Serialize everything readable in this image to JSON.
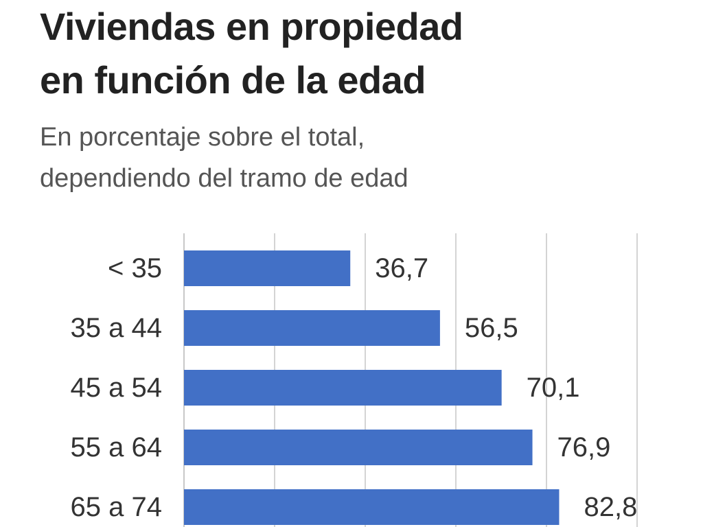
{
  "title": {
    "line1": "Viviendas en propiedad",
    "line2": "en función de la edad"
  },
  "subtitle": {
    "line1": "En porcentaje sobre el total,",
    "line2": "dependiendo del tramo de edad"
  },
  "colors": {
    "bar": "#4270c6",
    "grid": "#d4d4d4",
    "text": "#333333"
  },
  "chart_data": {
    "type": "bar",
    "orientation": "horizontal",
    "title": "Viviendas en propiedad en función de la edad",
    "subtitle": "En porcentaje sobre el total, dependiendo del tramo de edad",
    "categories": [
      "< 35",
      "35 a 44",
      "45 a 54",
      "55 a 64",
      "65 a 74"
    ],
    "values": [
      36.7,
      56.5,
      70.1,
      76.9,
      82.8
    ],
    "value_labels": [
      "36,7",
      "56,5",
      "70,1",
      "76,9",
      "82,8"
    ],
    "xlabel": "",
    "ylabel": "",
    "xlim": [
      0,
      100
    ],
    "grid": true,
    "legend": "none"
  }
}
